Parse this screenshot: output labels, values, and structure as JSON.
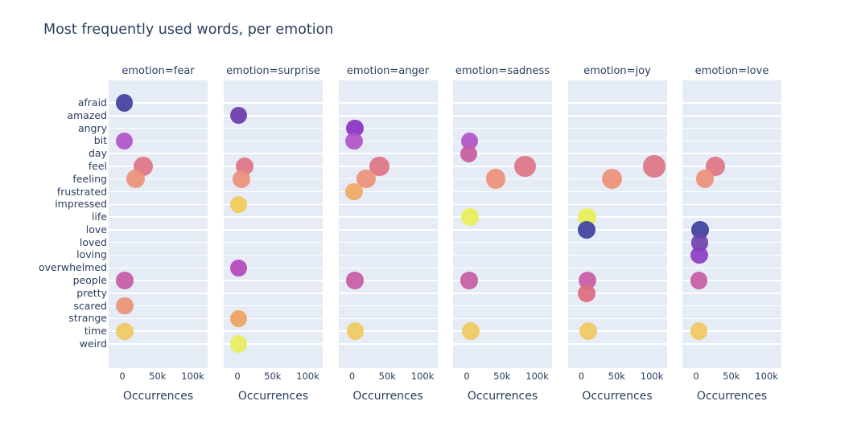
{
  "chart_data": {
    "type": "scatter",
    "title": "Most frequently used words, per emotion",
    "xlabel": "Occurrences",
    "x_tick_labels": [
      "0",
      "50k",
      "100k"
    ],
    "x_tick_values_k": [
      0,
      50,
      100
    ],
    "x_range_k": [
      -19.5,
      122
    ],
    "grid": "horizontal-white-gridlines",
    "legend_position": "none",
    "categories": [
      "afraid",
      "amazed",
      "angry",
      "bit",
      "day",
      "feel",
      "feeling",
      "frustrated",
      "impressed",
      "life",
      "love",
      "loved",
      "loving",
      "overwhelmed",
      "people",
      "pretty",
      "scared",
      "strange",
      "time",
      "weird"
    ],
    "word_colors": {
      "afraid": "#433e9d",
      "amazed": "#6a3aa9",
      "angry": "#8c30c0",
      "bit": "#b052c5",
      "day": "#c75ba0",
      "feel": "#dd7486",
      "feeling": "#ee9077",
      "frustrated": "#f2a963",
      "impressed": "#f0cb57",
      "life": "#e9ef55",
      "love": "#3f3f9d",
      "loved": "#6e44ab",
      "loving": "#8c3ec1",
      "overwhelmed": "#b346ba",
      "people": "#c75ba4",
      "pretty": "#dd6a7f",
      "scared": "#ec9173",
      "strange": "#f0a25e",
      "time": "#f0c95e",
      "weird": "#e9ed5b"
    },
    "facets": [
      {
        "label": "emotion=fear",
        "emotion": "fear",
        "points": [
          {
            "word": "afraid",
            "occurrences": 3000
          },
          {
            "word": "bit",
            "occurrences": 3000
          },
          {
            "word": "feel",
            "occurrences": 30000
          },
          {
            "word": "feeling",
            "occurrences": 19000
          },
          {
            "word": "people",
            "occurrences": 3500
          },
          {
            "word": "scared",
            "occurrences": 3500
          },
          {
            "word": "time",
            "occurrences": 3500
          }
        ]
      },
      {
        "label": "emotion=surprise",
        "emotion": "surprise",
        "points": [
          {
            "word": "amazed",
            "occurrences": 1500
          },
          {
            "word": "feel",
            "occurrences": 10500
          },
          {
            "word": "feeling",
            "occurrences": 6000
          },
          {
            "word": "impressed",
            "occurrences": 2000
          },
          {
            "word": "overwhelmed",
            "occurrences": 1500
          },
          {
            "word": "strange",
            "occurrences": 1500
          },
          {
            "word": "weird",
            "occurrences": 2000
          }
        ]
      },
      {
        "label": "emotion=anger",
        "emotion": "anger",
        "points": [
          {
            "word": "angry",
            "occurrences": 4000
          },
          {
            "word": "bit",
            "occurrences": 3000
          },
          {
            "word": "feel",
            "occurrences": 39000
          },
          {
            "word": "feeling",
            "occurrences": 20000
          },
          {
            "word": "frustrated",
            "occurrences": 3000
          },
          {
            "word": "people",
            "occurrences": 4000
          },
          {
            "word": "time",
            "occurrences": 4500
          }
        ]
      },
      {
        "label": "emotion=sadness",
        "emotion": "sadness",
        "points": [
          {
            "word": "bit",
            "occurrences": 4000
          },
          {
            "word": "day",
            "occurrences": 3000
          },
          {
            "word": "feel",
            "occurrences": 83000
          },
          {
            "word": "feeling",
            "occurrences": 41000
          },
          {
            "word": "life",
            "occurrences": 4500
          },
          {
            "word": "people",
            "occurrences": 3500
          },
          {
            "word": "time",
            "occurrences": 6000
          }
        ]
      },
      {
        "label": "emotion=joy",
        "emotion": "joy",
        "points": [
          {
            "word": "feel",
            "occurrences": 103000
          },
          {
            "word": "feeling",
            "occurrences": 43000
          },
          {
            "word": "life",
            "occurrences": 8000
          },
          {
            "word": "love",
            "occurrences": 7500
          },
          {
            "word": "people",
            "occurrences": 8500
          },
          {
            "word": "pretty",
            "occurrences": 7000
          },
          {
            "word": "time",
            "occurrences": 9500
          }
        ]
      },
      {
        "label": "emotion=love",
        "emotion": "love",
        "points": [
          {
            "word": "feel",
            "occurrences": 27000
          },
          {
            "word": "feeling",
            "occurrences": 12500
          },
          {
            "word": "love",
            "occurrences": 5500
          },
          {
            "word": "loved",
            "occurrences": 5000
          },
          {
            "word": "loving",
            "occurrences": 4500
          },
          {
            "word": "people",
            "occurrences": 4000
          },
          {
            "word": "time",
            "occurrences": 4000
          }
        ]
      }
    ]
  },
  "colors": {
    "background": "#ffffff",
    "panel_background": "#e5ecf6",
    "gridline": "#ffffff",
    "text": "#2a3f5f"
  }
}
